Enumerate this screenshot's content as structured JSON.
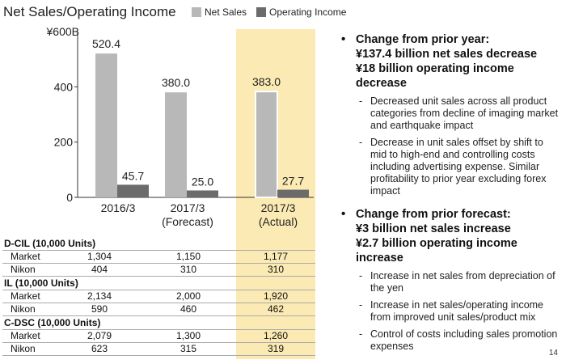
{
  "slide": {
    "title": "Net Sales/Operating Income",
    "page_number": "14"
  },
  "colors": {
    "net_sales": "#b8b8b8",
    "operating_income": "#6b6b6b",
    "highlight": "#fbeab3"
  },
  "chart_data": {
    "type": "bar",
    "title": "Net Sales/Operating Income",
    "y_top_label": "¥600B",
    "y_ticks": [
      0,
      200,
      400
    ],
    "ylim": [
      0,
      600
    ],
    "categories": [
      [
        "2016/3"
      ],
      [
        "2017/3",
        "(Forecast)"
      ],
      [
        "2017/3",
        "(Actual)"
      ]
    ],
    "series": [
      {
        "name": "Net Sales",
        "values": [
          520.4,
          380.0,
          383.0
        ],
        "labels": [
          "520.4",
          "380.0",
          "383.0"
        ]
      },
      {
        "name": "Operating Income",
        "values": [
          45.7,
          25.0,
          27.7
        ],
        "labels": [
          "45.7",
          "25.0",
          "27.7"
        ]
      }
    ],
    "highlighted_category_index": 2,
    "legend_position": "top"
  },
  "table": {
    "sections": [
      {
        "title": "D-CIL (10,000 Units)",
        "rows": [
          {
            "label": "Market",
            "values": [
              "1,304",
              "1,150",
              "1,177"
            ]
          },
          {
            "label": "Nikon",
            "values": [
              "404",
              "310",
              "310"
            ]
          }
        ]
      },
      {
        "title": "IL (10,000 Units)",
        "rows": [
          {
            "label": "Market",
            "values": [
              "2,134",
              "2,000",
              "1,920"
            ]
          },
          {
            "label": "Nikon",
            "values": [
              "590",
              "460",
              "462"
            ]
          }
        ]
      },
      {
        "title": "C-DSC (10,000 Units)",
        "rows": [
          {
            "label": "Market",
            "values": [
              "2,079",
              "1,300",
              "1,260"
            ]
          },
          {
            "label": "Nikon",
            "values": [
              "623",
              "315",
              "319"
            ]
          }
        ]
      }
    ]
  },
  "notes": {
    "bullet": "•",
    "dash": "-",
    "prior_year": {
      "heading_lines": [
        "Change from prior year:",
        "¥137.4 billion net sales decrease",
        "¥18 billion operating income decrease"
      ],
      "items": [
        "Decreased unit sales across all product categories from decline of imaging market and earthquake impact",
        "Decrease in unit sales offset by shift to mid to high-end and controlling costs including advertising expense. Similar profitability to prior year excluding forex impact"
      ]
    },
    "prior_forecast": {
      "heading_lines": [
        "Change from prior forecast:",
        "¥3 billion net sales increase",
        "¥2.7 billion operating income increase"
      ],
      "items": [
        "Increase in net sales from depreciation of the yen",
        "Increase in net sales/operating income from improved unit sales/product mix",
        "Control of costs including sales promotion expenses"
      ]
    }
  }
}
